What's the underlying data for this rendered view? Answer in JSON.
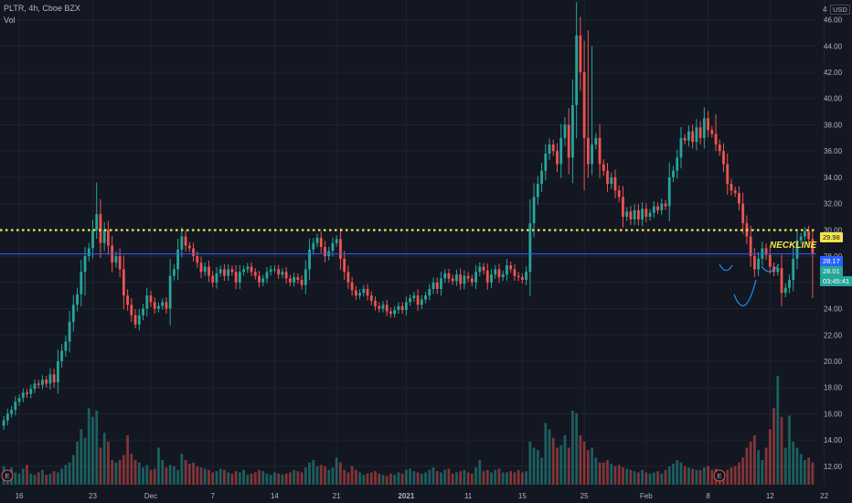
{
  "header": {
    "title": "PLTR, 4h, Cboe BZX",
    "sub": "Vol",
    "currency": "USD",
    "corner_digit": "4"
  },
  "price_tags": {
    "neckline": "29.98",
    "last1": "28.17",
    "last2": "28.01",
    "countdown": "03:45:41"
  },
  "annotation": {
    "neckline_label": "NECKLINE"
  },
  "colors": {
    "bg": "#131722",
    "up": "#26a69a",
    "down": "#ef5350",
    "neckline": "#f5e54a",
    "line": "#2962ff",
    "arc": "#2196f3"
  },
  "chart_data": {
    "type": "candlestick",
    "symbol": "PLTR",
    "interval": "4h",
    "ylim": [
      10.6,
      47.5
    ],
    "y_ticks": [
      "12.00",
      "14.00",
      "16.00",
      "18.00",
      "20.00",
      "22.00",
      "24.00",
      "26.00",
      "28.00",
      "30.00",
      "32.00",
      "34.00",
      "36.00",
      "38.00",
      "40.00",
      "42.00",
      "44.00",
      "46.00"
    ],
    "x_ticks": [
      "16",
      "23",
      "Dec",
      "7",
      "14",
      "21",
      "2021",
      "11",
      "15",
      "25",
      "Feb",
      "8",
      "12",
      "22"
    ],
    "neckline_price": 29.98,
    "horizontal_line_price": 28.17,
    "events": [
      "E",
      "E"
    ],
    "closes": [
      15.5,
      16.0,
      16.3,
      16.9,
      17.2,
      17.6,
      17.5,
      17.9,
      18.3,
      18.2,
      18.6,
      18.3,
      19.0,
      18.4,
      20.0,
      20.8,
      21.5,
      23.0,
      24.3,
      25.1,
      26.8,
      28.0,
      28.6,
      30.0,
      31.2,
      29.0,
      30.0,
      28.8,
      27.5,
      28.0,
      27.0,
      25.0,
      24.3,
      23.5,
      22.8,
      23.5,
      24.0,
      25.0,
      24.5,
      24.0,
      24.2,
      24.5,
      24.0,
      26.5,
      27.0,
      28.5,
      29.5,
      28.8,
      28.6,
      28.0,
      27.5,
      26.8,
      27.2,
      26.5,
      26.0,
      26.7,
      27.0,
      26.5,
      27.0,
      26.8,
      26.0,
      26.8,
      27.0,
      27.2,
      26.8,
      26.5,
      26.0,
      26.3,
      26.8,
      27.0,
      27.0,
      26.6,
      26.8,
      26.3,
      26.0,
      26.4,
      26.2,
      25.8,
      27.0,
      28.5,
      29.0,
      29.4,
      28.7,
      28.0,
      28.4,
      29.0,
      29.3,
      27.8,
      26.8,
      26.0,
      25.4,
      25.0,
      25.2,
      25.5,
      25.0,
      24.6,
      24.2,
      24.0,
      24.3,
      23.8,
      23.6,
      23.9,
      24.2,
      23.9,
      24.5,
      24.8,
      25.0,
      24.3,
      24.7,
      25.0,
      25.5,
      26.0,
      25.5,
      26.3,
      26.7,
      26.3,
      26.1,
      26.6,
      25.9,
      26.5,
      26.3,
      26.0,
      26.8,
      27.2,
      26.9,
      26.0,
      26.6,
      27.0,
      26.4,
      26.6,
      27.3,
      27.0,
      26.5,
      26.4,
      26.2,
      26.8,
      30.5,
      32.5,
      33.5,
      34.5,
      35.8,
      36.5,
      36.0,
      35.0,
      37.0,
      38.0,
      35.5,
      39.5,
      44.8,
      42.0,
      37.0,
      35.0,
      36.5,
      37.0,
      35.0,
      34.5,
      33.5,
      34.0,
      33.0,
      32.5,
      31.0,
      31.4,
      30.8,
      31.5,
      30.8,
      31.6,
      31.0,
      31.3,
      31.8,
      31.5,
      32.0,
      31.8,
      34.0,
      34.5,
      35.5,
      37.0,
      36.8,
      37.5,
      36.7,
      37.8,
      37.0,
      38.5,
      37.6,
      37.3,
      36.5,
      36.0,
      35.0,
      33.5,
      33.0,
      32.8,
      32.0,
      30.5,
      29.5,
      28.0,
      27.0,
      27.8,
      28.6,
      28.1,
      27.2,
      26.8,
      27.1,
      25.2,
      25.6,
      26.2,
      27.8,
      29.2,
      29.5,
      29.9,
      29.3,
      28.17
    ],
    "volumes": [
      0.15,
      0.12,
      0.14,
      0.1,
      0.09,
      0.13,
      0.16,
      0.09,
      0.08,
      0.1,
      0.12,
      0.08,
      0.09,
      0.11,
      0.1,
      0.13,
      0.16,
      0.18,
      0.24,
      0.35,
      0.45,
      0.38,
      0.62,
      0.55,
      0.6,
      0.3,
      0.42,
      0.35,
      0.2,
      0.18,
      0.2,
      0.24,
      0.4,
      0.25,
      0.2,
      0.18,
      0.14,
      0.16,
      0.12,
      0.13,
      0.3,
      0.2,
      0.14,
      0.16,
      0.15,
      0.12,
      0.25,
      0.2,
      0.17,
      0.18,
      0.15,
      0.14,
      0.13,
      0.12,
      0.1,
      0.11,
      0.13,
      0.12,
      0.1,
      0.09,
      0.11,
      0.1,
      0.12,
      0.08,
      0.09,
      0.1,
      0.12,
      0.11,
      0.09,
      0.08,
      0.1,
      0.09,
      0.08,
      0.09,
      0.1,
      0.12,
      0.11,
      0.1,
      0.14,
      0.18,
      0.2,
      0.15,
      0.16,
      0.15,
      0.12,
      0.14,
      0.22,
      0.18,
      0.12,
      0.1,
      0.15,
      0.12,
      0.1,
      0.08,
      0.09,
      0.1,
      0.11,
      0.09,
      0.08,
      0.07,
      0.09,
      0.08,
      0.1,
      0.09,
      0.12,
      0.13,
      0.11,
      0.1,
      0.09,
      0.1,
      0.12,
      0.14,
      0.11,
      0.1,
      0.12,
      0.13,
      0.09,
      0.1,
      0.11,
      0.12,
      0.1,
      0.09,
      0.14,
      0.2,
      0.11,
      0.12,
      0.1,
      0.12,
      0.13,
      0.1,
      0.1,
      0.11,
      0.1,
      0.12,
      0.1,
      0.11,
      0.35,
      0.3,
      0.28,
      0.22,
      0.5,
      0.45,
      0.38,
      0.3,
      0.32,
      0.4,
      0.3,
      0.6,
      0.58,
      0.4,
      0.35,
      0.28,
      0.3,
      0.22,
      0.18,
      0.18,
      0.2,
      0.17,
      0.15,
      0.16,
      0.14,
      0.13,
      0.12,
      0.11,
      0.1,
      0.12,
      0.1,
      0.09,
      0.1,
      0.11,
      0.09,
      0.12,
      0.15,
      0.17,
      0.2,
      0.18,
      0.15,
      0.14,
      0.13,
      0.12,
      0.12,
      0.14,
      0.15,
      0.12,
      0.13,
      0.11,
      0.1,
      0.12,
      0.14,
      0.15,
      0.18,
      0.22,
      0.3,
      0.35,
      0.4,
      0.28,
      0.2,
      0.3,
      0.45,
      0.62,
      0.88,
      0.55,
      0.3,
      0.56,
      0.35,
      0.3,
      0.25,
      0.2,
      0.22,
      0.18
    ]
  }
}
